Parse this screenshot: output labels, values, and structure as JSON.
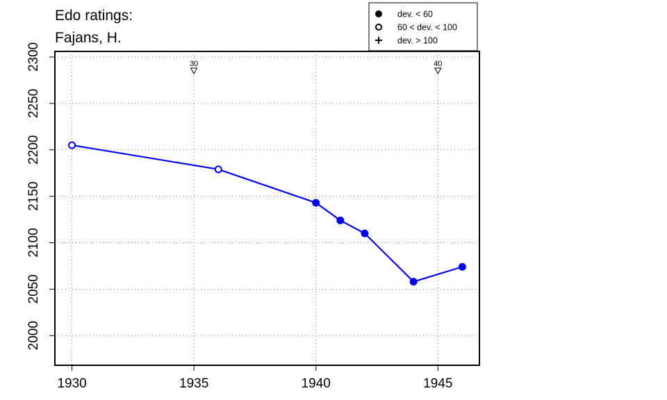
{
  "chart_data": {
    "type": "line",
    "title_lines": [
      "Edo ratings:",
      "Fajans, H."
    ],
    "xlabel": "",
    "ylabel": "",
    "xlim": [
      1929.3,
      1946.7
    ],
    "ylim": [
      1968,
      2306
    ],
    "x_ticks": [
      1930,
      1935,
      1940,
      1945
    ],
    "y_ticks": [
      2000,
      2050,
      2100,
      2150,
      2200,
      2250,
      2300
    ],
    "grid": true,
    "series": [
      {
        "color": "#0000ee",
        "points": [
          {
            "x": 1930,
            "y": 2205,
            "marker": "open-circle"
          },
          {
            "x": 1936,
            "y": 2179,
            "marker": "open-circle"
          },
          {
            "x": 1940,
            "y": 2143,
            "marker": "filled-circle"
          },
          {
            "x": 1941,
            "y": 2124,
            "marker": "filled-circle"
          },
          {
            "x": 1942,
            "y": 2110,
            "marker": "filled-circle"
          },
          {
            "x": 1944,
            "y": 2058,
            "marker": "filled-circle"
          },
          {
            "x": 1946,
            "y": 2074,
            "marker": "filled-circle"
          }
        ]
      }
    ],
    "age_markers": [
      {
        "x": 1935,
        "label": "30"
      },
      {
        "x": 1945,
        "label": "40"
      }
    ],
    "legend": {
      "placement": "top-right",
      "entries": [
        {
          "marker": "filled-circle",
          "label": "dev. < 60"
        },
        {
          "marker": "open-circle",
          "label": "60 < dev. < 100"
        },
        {
          "marker": "plus",
          "label": "dev. > 100"
        }
      ]
    }
  }
}
